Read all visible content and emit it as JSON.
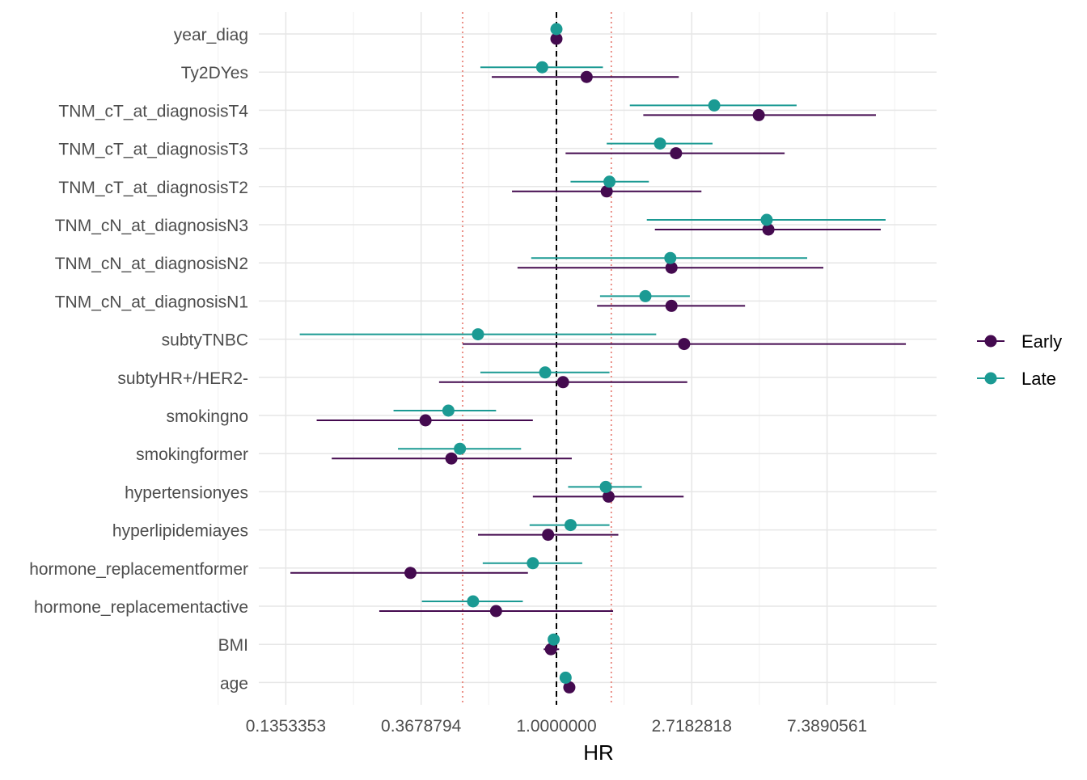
{
  "chart_data": {
    "type": "forest",
    "xlabel": "HR",
    "x_scale": "log",
    "xlim": [
      0.111,
      16.6
    ],
    "x_ticks": [
      0.1353353,
      0.3678794,
      1.0,
      2.7182818,
      7.3890561
    ],
    "x_tick_labels": [
      "0.1353353",
      "0.3678794",
      "1.0000000",
      "2.7182818",
      "7.3890561"
    ],
    "reference_line": 1.0,
    "dotted_lines": [
      0.5,
      1.5
    ],
    "grid": true,
    "legend": {
      "placement": "right",
      "entries": [
        "Early",
        "Late"
      ]
    },
    "colors": {
      "Early": "#440a4f",
      "Late": "#1b9a93",
      "dotted": "#e8847a"
    },
    "categories": [
      "year_diag",
      "Ty2DYes",
      "TNM_cT_at_diagnosisT4",
      "TNM_cT_at_diagnosisT3",
      "TNM_cT_at_diagnosisT2",
      "TNM_cN_at_diagnosisN3",
      "TNM_cN_at_diagnosisN2",
      "TNM_cN_at_diagnosisN1",
      "subtyTNBC",
      "subtyHR+/HER2-",
      "smokingno",
      "smokingformer",
      "hypertensionyes",
      "hyperlipidemiayes",
      "hormone_replacementformer",
      "hormone_replacementactive",
      "BMI",
      "age"
    ],
    "series": [
      {
        "name": "Early",
        "hr": [
          1.0,
          1.25,
          4.46,
          2.42,
          1.45,
          4.79,
          2.34,
          2.34,
          2.57,
          1.05,
          0.38,
          0.46,
          1.47,
          0.94,
          0.34,
          0.64,
          0.96,
          1.1
        ],
        "lower": [
          0.99,
          0.62,
          1.9,
          1.07,
          0.72,
          2.07,
          0.75,
          1.35,
          0.5,
          0.42,
          0.17,
          0.19,
          0.84,
          0.56,
          0.14,
          0.27,
          0.91,
          1.07
        ],
        "upper": [
          1.01,
          2.47,
          10.6,
          5.4,
          2.92,
          10.99,
          7.19,
          4.03,
          13.23,
          2.63,
          0.84,
          1.12,
          2.56,
          1.58,
          0.81,
          1.52,
          1.02,
          1.12
        ]
      },
      {
        "name": "Late",
        "hr": [
          1.0,
          0.9,
          3.21,
          2.15,
          1.48,
          4.73,
          2.32,
          1.93,
          0.56,
          0.92,
          0.45,
          0.49,
          1.44,
          1.11,
          0.84,
          0.54,
          0.98,
          1.07
        ],
        "lower": [
          0.99,
          0.57,
          1.72,
          1.45,
          1.11,
          1.95,
          0.83,
          1.38,
          0.15,
          0.57,
          0.3,
          0.31,
          1.09,
          0.82,
          0.58,
          0.37,
          0.96,
          1.05
        ],
        "upper": [
          1.01,
          1.41,
          5.9,
          3.17,
          1.98,
          11.39,
          6.38,
          2.68,
          2.09,
          1.48,
          0.64,
          0.77,
          1.88,
          1.48,
          1.21,
          0.78,
          1.01,
          1.1
        ]
      }
    ]
  }
}
